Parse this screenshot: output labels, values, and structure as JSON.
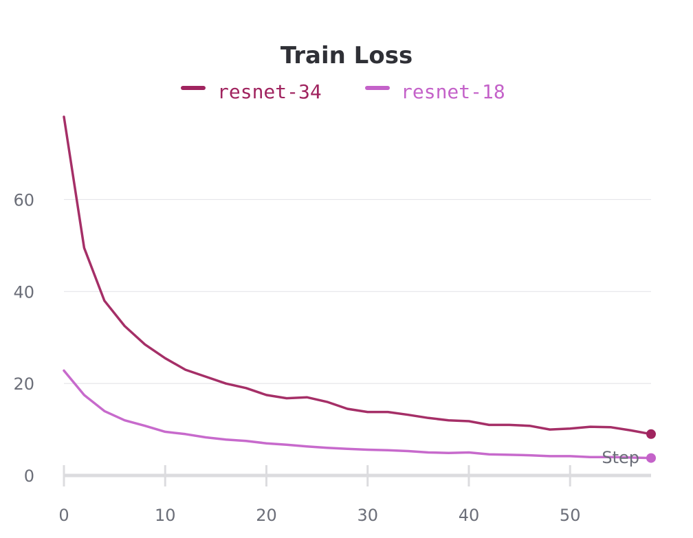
{
  "chart_data": {
    "type": "line",
    "title": "Train Loss",
    "xlabel": "Step",
    "ylabel": "",
    "xlim": [
      0,
      58
    ],
    "ylim": [
      0,
      78
    ],
    "x_ticks": [
      0,
      10,
      20,
      30,
      40,
      50
    ],
    "y_ticks": [
      0,
      20,
      40,
      60
    ],
    "grid": "horizontal",
    "legend": "top-center",
    "x": [
      0,
      2,
      4,
      6,
      8,
      10,
      12,
      14,
      16,
      18,
      20,
      22,
      24,
      26,
      28,
      30,
      32,
      34,
      36,
      38,
      40,
      42,
      44,
      46,
      48,
      50,
      52,
      54,
      56,
      58
    ],
    "series": [
      {
        "name": "resnet-34",
        "color": "#a0245f",
        "values": [
          78,
          49.5,
          38,
          32.5,
          28.5,
          25.5,
          23,
          21.5,
          20,
          19,
          17.5,
          16.8,
          17,
          16,
          14.5,
          13.8,
          13.8,
          13.2,
          12.5,
          12,
          11.8,
          11,
          11,
          10.8,
          10,
          10.2,
          10.6,
          10.5,
          9.8,
          9
        ]
      },
      {
        "name": "resnet-18",
        "color": "#c462c9",
        "values": [
          22.8,
          17.5,
          14,
          12,
          10.8,
          9.5,
          9,
          8.3,
          7.8,
          7.5,
          7,
          6.7,
          6.3,
          6,
          5.8,
          5.6,
          5.5,
          5.3,
          5,
          4.9,
          5,
          4.6,
          4.5,
          4.4,
          4.2,
          4.2,
          4,
          4,
          3.9,
          3.8
        ]
      }
    ]
  }
}
